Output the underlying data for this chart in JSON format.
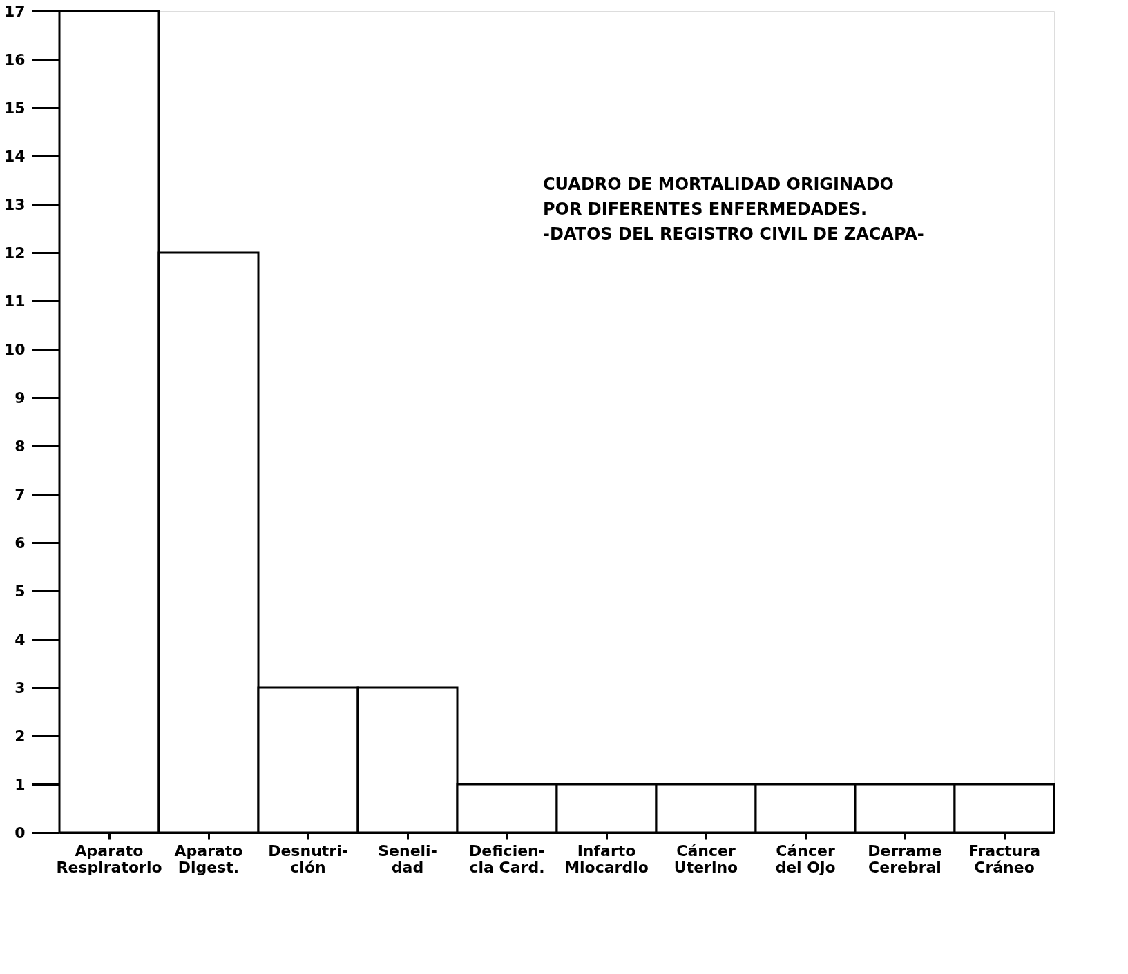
{
  "chart_data": {
    "type": "bar",
    "title": "CUADRO DE MORTALIDAD ORIGINADO\nPOR DIFERENTES ENFERMEDADES.\n-DATOS DEL REGISTRO CIVIL DE ZACAPA-",
    "categories": [
      "Aparato\nRespiratorio",
      "Aparato\nDigest.",
      "Desnutri-\nción",
      "Seneli-\ndad",
      "Deficien-\ncia Card.",
      "Infarto\nMiocardio",
      "Cáncer\nUterino",
      "Cáncer\ndel Ojo",
      "Derrame\nCerebral",
      "Fractura\nCráneo"
    ],
    "values": [
      17,
      12,
      3,
      3,
      1,
      1,
      1,
      1,
      1,
      1
    ],
    "color": "#ffffff",
    "ylim": [
      0,
      17
    ],
    "yticks": [
      0,
      1,
      2,
      3,
      4,
      5,
      6,
      7,
      8,
      9,
      10,
      11,
      12,
      13,
      14,
      15,
      16,
      17
    ],
    "grid": false
  }
}
